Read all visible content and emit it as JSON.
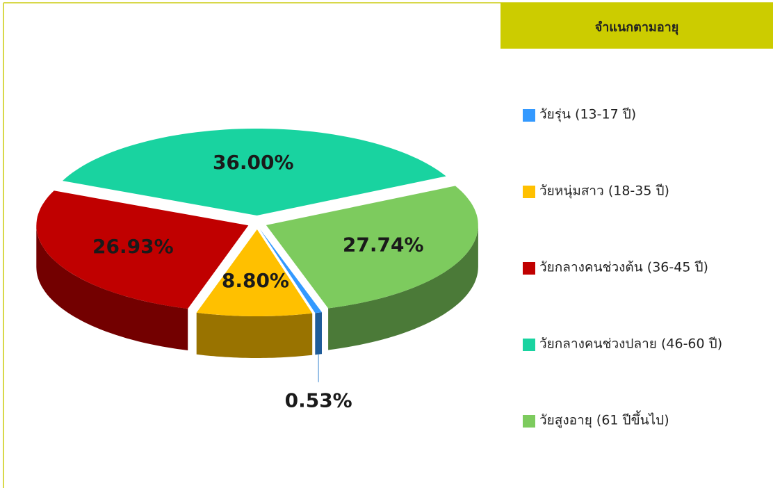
{
  "chart_data": {
    "type": "pie",
    "legend_title": "จำแนกตามอายุ",
    "categories": [
      "วัยรุ่น (13-17 ปี)",
      "วัยหนุ่มสาว (18-35 ปี)",
      "วัยกลางคนช่วงต้น (36-45 ปี)",
      "วัยกลางคนช่วงปลาย (46-60 ปี)",
      "วัยสูงอายุ (61 ปีขึ้นไป)"
    ],
    "values": [
      0.53,
      8.8,
      26.93,
      36.0,
      27.74
    ],
    "value_labels": [
      "0.53%",
      "8.80%",
      "26.93%",
      "36.00%",
      "27.74%"
    ],
    "colors": [
      "#3399ff",
      "#ffc000",
      "#c00000",
      "#19d3a0",
      "#7dcb5e"
    ]
  }
}
